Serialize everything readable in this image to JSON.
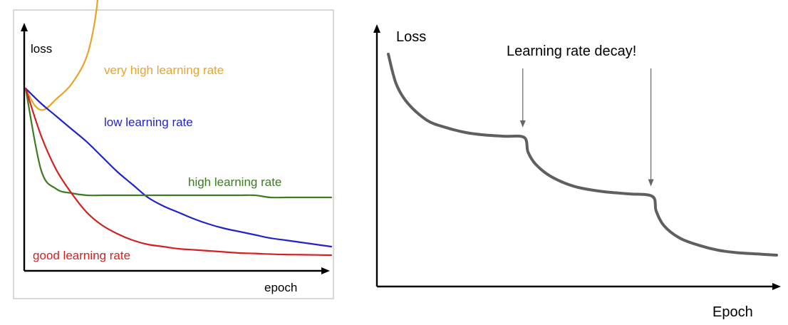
{
  "chart_data": [
    {
      "type": "line",
      "xlabel": "epoch",
      "ylabel": "loss",
      "grid": false,
      "legend": "labels placed next to curves",
      "x": [
        0,
        0.05,
        0.1,
        0.15,
        0.2,
        0.25,
        0.3,
        0.35,
        0.4,
        0.45,
        0.5,
        0.55,
        0.6,
        0.65,
        0.7,
        0.75,
        0.8,
        0.85,
        0.9,
        0.95,
        1.0
      ],
      "series": [
        {
          "name": "very high learning rate",
          "color": "#e8a42b",
          "x": [
            0,
            0.03,
            0.06,
            0.1,
            0.15,
            0.2,
            0.23,
            0.25
          ],
          "values": [
            0.8,
            0.72,
            0.7,
            0.75,
            0.82,
            0.95,
            1.15,
            1.45
          ]
        },
        {
          "name": "low learning rate",
          "color": "#2323c8",
          "values": [
            0.8,
            0.73,
            0.67,
            0.61,
            0.55,
            0.48,
            0.41,
            0.35,
            0.29,
            0.25,
            0.22,
            0.19,
            0.165,
            0.145,
            0.13,
            0.115,
            0.1,
            0.09,
            0.08,
            0.07,
            0.06
          ]
        },
        {
          "name": "high learning rate",
          "color": "#3e7b22",
          "values": [
            0.8,
            0.42,
            0.33,
            0.31,
            0.3,
            0.3,
            0.3,
            0.3,
            0.3,
            0.3,
            0.3,
            0.3,
            0.3,
            0.3,
            0.3,
            0.3,
            0.29,
            0.29,
            0.29,
            0.29,
            0.29
          ]
        },
        {
          "name": "good learning rate",
          "color": "#d42020",
          "values": [
            0.8,
            0.58,
            0.42,
            0.31,
            0.22,
            0.16,
            0.12,
            0.09,
            0.07,
            0.06,
            0.05,
            0.045,
            0.04,
            0.035,
            0.03,
            0.028,
            0.025,
            0.023,
            0.022,
            0.021,
            0.02
          ]
        }
      ]
    },
    {
      "type": "line",
      "xlabel": "Epoch",
      "ylabel": "Loss",
      "grid": false,
      "annotations": [
        {
          "text": "Learning rate decay!"
        }
      ],
      "decay_points_x": [
        0.35,
        0.68
      ],
      "series": [
        {
          "color": "#5f5f5f",
          "x": [
            0,
            0.02,
            0.05,
            0.1,
            0.15,
            0.2,
            0.25,
            0.3,
            0.35,
            0.36,
            0.38,
            0.42,
            0.48,
            0.55,
            0.62,
            0.68,
            0.69,
            0.71,
            0.75,
            0.8,
            0.85,
            0.9,
            0.95,
            1.0
          ],
          "values": [
            1.0,
            0.88,
            0.8,
            0.73,
            0.7,
            0.68,
            0.67,
            0.665,
            0.66,
            0.6,
            0.55,
            0.5,
            0.46,
            0.44,
            0.43,
            0.42,
            0.36,
            0.3,
            0.25,
            0.22,
            0.2,
            0.19,
            0.185,
            0.18
          ]
        }
      ]
    }
  ]
}
